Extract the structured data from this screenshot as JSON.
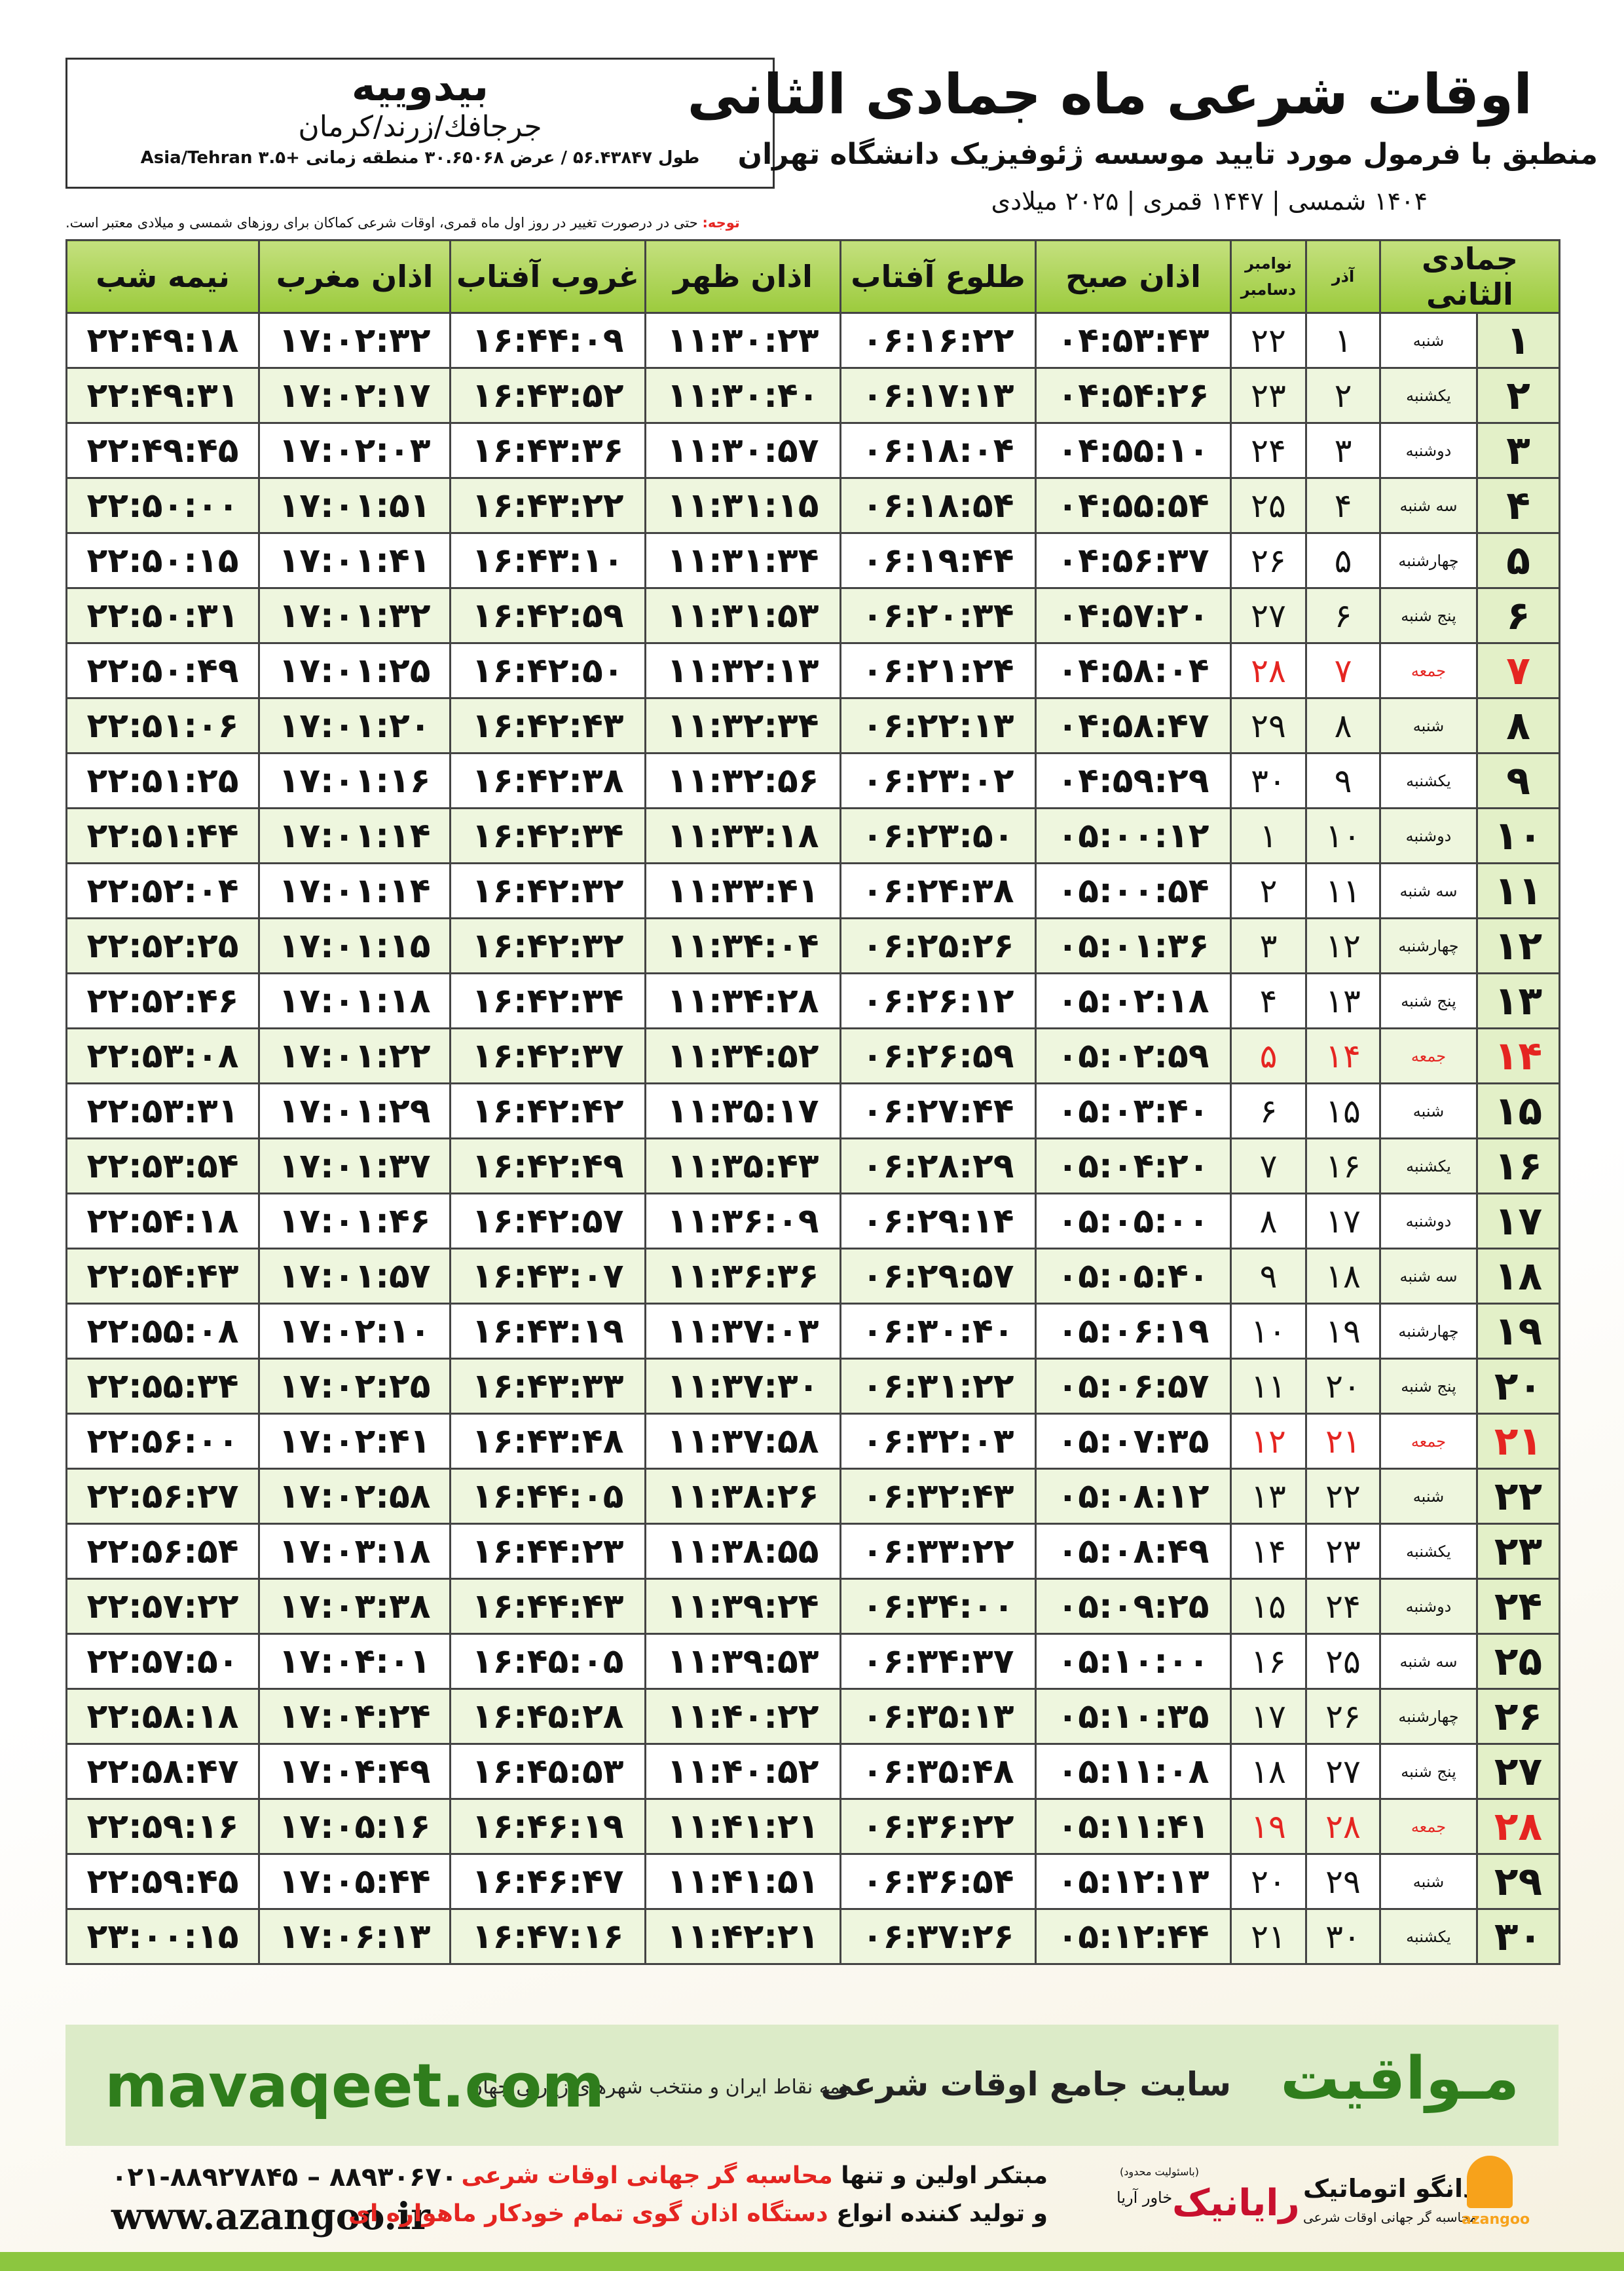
{
  "header": {
    "title": "اوقات شرعی ماه جمادی الثانی",
    "subtitle": "منطبق با فرمول مورد تایید موسسه ژئوفیزیک دانشگاه تهران",
    "years": "۱۴۰۴ شمسی | ۱۴۴۷ قمری | ۲۰۲۵ میلادی"
  },
  "location": {
    "city": "بیدوییه",
    "region": "جرجافك/زرند/کرمان",
    "coords": "طول ۵۶.۴۳۸۴۷ / عرض ۳۰.۶۵۰۶۸ منطقه زمانی +۳.۵ Asia/Tehran"
  },
  "note": {
    "label": "توجه:",
    "text": "حتی در درصورت تغییر در روز اول ماه قمری، اوقات شرعی کماکان برای روزهای شمسی و میلادی معتبر است."
  },
  "table": {
    "headers": {
      "hijri": "جمادی الثانی",
      "azar": "آذر",
      "november": "نوامبر",
      "december": "دسامبر",
      "fajr": "اذان صبح",
      "sunrise": "طلوع آفتاب",
      "dhuhr": "اذان ظهر",
      "sunset": "غروب آفتاب",
      "maghrib": "اذان مغرب",
      "midnight": "نیمه شب"
    },
    "holiday_color": "#e52521",
    "rows": [
      {
        "cells": [
          "۱",
          "شنبه",
          "۱",
          "۲۲",
          "۰۴:۵۳:۴۳",
          "۰۶:۱۶:۲۲",
          "۱۱:۳۰:۲۳",
          "۱۶:۴۴:۰۹",
          "۱۷:۰۲:۳۲",
          "۲۲:۴۹:۱۸"
        ]
      },
      {
        "cells": [
          "۲",
          "یکشنبه",
          "۲",
          "۲۳",
          "۰۴:۵۴:۲۶",
          "۰۶:۱۷:۱۳",
          "۱۱:۳۰:۴۰",
          "۱۶:۴۳:۵۲",
          "۱۷:۰۲:۱۷",
          "۲۲:۴۹:۳۱"
        ]
      },
      {
        "cells": [
          "۳",
          "دوشنبه",
          "۳",
          "۲۴",
          "۰۴:۵۵:۱۰",
          "۰۶:۱۸:۰۴",
          "۱۱:۳۰:۵۷",
          "۱۶:۴۳:۳۶",
          "۱۷:۰۲:۰۳",
          "۲۲:۴۹:۴۵"
        ]
      },
      {
        "cells": [
          "۴",
          "سه شنبه",
          "۴",
          "۲۵",
          "۰۴:۵۵:۵۴",
          "۰۶:۱۸:۵۴",
          "۱۱:۳۱:۱۵",
          "۱۶:۴۳:۲۲",
          "۱۷:۰۱:۵۱",
          "۲۲:۵۰:۰۰"
        ]
      },
      {
        "cells": [
          "۵",
          "چهارشنبه",
          "۵",
          "۲۶",
          "۰۴:۵۶:۳۷",
          "۰۶:۱۹:۴۴",
          "۱۱:۳۱:۳۴",
          "۱۶:۴۳:۱۰",
          "۱۷:۰۱:۴۱",
          "۲۲:۵۰:۱۵"
        ]
      },
      {
        "cells": [
          "۶",
          "پنج شنبه",
          "۶",
          "۲۷",
          "۰۴:۵۷:۲۰",
          "۰۶:۲۰:۳۴",
          "۱۱:۳۱:۵۳",
          "۱۶:۴۲:۵۹",
          "۱۷:۰۱:۳۲",
          "۲۲:۵۰:۳۱"
        ]
      },
      {
        "cells": [
          "۷",
          "جمعه",
          "۷",
          "۲۸",
          "۰۴:۵۸:۰۴",
          "۰۶:۲۱:۲۴",
          "۱۱:۳۲:۱۳",
          "۱۶:۴۲:۵۰",
          "۱۷:۰۱:۲۵",
          "۲۲:۵۰:۴۹"
        ],
        "holiday": true
      },
      {
        "cells": [
          "۸",
          "شنبه",
          "۸",
          "۲۹",
          "۰۴:۵۸:۴۷",
          "۰۶:۲۲:۱۳",
          "۱۱:۳۲:۳۴",
          "۱۶:۴۲:۴۳",
          "۱۷:۰۱:۲۰",
          "۲۲:۵۱:۰۶"
        ]
      },
      {
        "cells": [
          "۹",
          "یکشنبه",
          "۹",
          "۳۰",
          "۰۴:۵۹:۲۹",
          "۰۶:۲۳:۰۲",
          "۱۱:۳۲:۵۶",
          "۱۶:۴۲:۳۸",
          "۱۷:۰۱:۱۶",
          "۲۲:۵۱:۲۵"
        ]
      },
      {
        "cells": [
          "۱۰",
          "دوشنبه",
          "۱۰",
          "۱",
          "۰۵:۰۰:۱۲",
          "۰۶:۲۳:۵۰",
          "۱۱:۳۳:۱۸",
          "۱۶:۴۲:۳۴",
          "۱۷:۰۱:۱۴",
          "۲۲:۵۱:۴۴"
        ]
      },
      {
        "cells": [
          "۱۱",
          "سه شنبه",
          "۱۱",
          "۲",
          "۰۵:۰۰:۵۴",
          "۰۶:۲۴:۳۸",
          "۱۱:۳۳:۴۱",
          "۱۶:۴۲:۳۲",
          "۱۷:۰۱:۱۴",
          "۲۲:۵۲:۰۴"
        ]
      },
      {
        "cells": [
          "۱۲",
          "چهارشنبه",
          "۱۲",
          "۳",
          "۰۵:۰۱:۳۶",
          "۰۶:۲۵:۲۶",
          "۱۱:۳۴:۰۴",
          "۱۶:۴۲:۳۲",
          "۱۷:۰۱:۱۵",
          "۲۲:۵۲:۲۵"
        ]
      },
      {
        "cells": [
          "۱۳",
          "پنج شنبه",
          "۱۳",
          "۴",
          "۰۵:۰۲:۱۸",
          "۰۶:۲۶:۱۲",
          "۱۱:۳۴:۲۸",
          "۱۶:۴۲:۳۴",
          "۱۷:۰۱:۱۸",
          "۲۲:۵۲:۴۶"
        ]
      },
      {
        "cells": [
          "۱۴",
          "جمعه",
          "۱۴",
          "۵",
          "۰۵:۰۲:۵۹",
          "۰۶:۲۶:۵۹",
          "۱۱:۳۴:۵۲",
          "۱۶:۴۲:۳۷",
          "۱۷:۰۱:۲۲",
          "۲۲:۵۳:۰۸"
        ],
        "holiday": true
      },
      {
        "cells": [
          "۱۵",
          "شنبه",
          "۱۵",
          "۶",
          "۰۵:۰۳:۴۰",
          "۰۶:۲۷:۴۴",
          "۱۱:۳۵:۱۷",
          "۱۶:۴۲:۴۲",
          "۱۷:۰۱:۲۹",
          "۲۲:۵۳:۳۱"
        ]
      },
      {
        "cells": [
          "۱۶",
          "یکشنبه",
          "۱۶",
          "۷",
          "۰۵:۰۴:۲۰",
          "۰۶:۲۸:۲۹",
          "۱۱:۳۵:۴۳",
          "۱۶:۴۲:۴۹",
          "۱۷:۰۱:۳۷",
          "۲۲:۵۳:۵۴"
        ]
      },
      {
        "cells": [
          "۱۷",
          "دوشنبه",
          "۱۷",
          "۸",
          "۰۵:۰۵:۰۰",
          "۰۶:۲۹:۱۴",
          "۱۱:۳۶:۰۹",
          "۱۶:۴۲:۵۷",
          "۱۷:۰۱:۴۶",
          "۲۲:۵۴:۱۸"
        ]
      },
      {
        "cells": [
          "۱۸",
          "سه شنبه",
          "۱۸",
          "۹",
          "۰۵:۰۵:۴۰",
          "۰۶:۲۹:۵۷",
          "۱۱:۳۶:۳۶",
          "۱۶:۴۳:۰۷",
          "۱۷:۰۱:۵۷",
          "۲۲:۵۴:۴۳"
        ]
      },
      {
        "cells": [
          "۱۹",
          "چهارشنبه",
          "۱۹",
          "۱۰",
          "۰۵:۰۶:۱۹",
          "۰۶:۳۰:۴۰",
          "۱۱:۳۷:۰۳",
          "۱۶:۴۳:۱۹",
          "۱۷:۰۲:۱۰",
          "۲۲:۵۵:۰۸"
        ]
      },
      {
        "cells": [
          "۲۰",
          "پنج شنبه",
          "۲۰",
          "۱۱",
          "۰۵:۰۶:۵۷",
          "۰۶:۳۱:۲۲",
          "۱۱:۳۷:۳۰",
          "۱۶:۴۳:۳۳",
          "۱۷:۰۲:۲۵",
          "۲۲:۵۵:۳۴"
        ]
      },
      {
        "cells": [
          "۲۱",
          "جمعه",
          "۲۱",
          "۱۲",
          "۰۵:۰۷:۳۵",
          "۰۶:۳۲:۰۳",
          "۱۱:۳۷:۵۸",
          "۱۶:۴۳:۴۸",
          "۱۷:۰۲:۴۱",
          "۲۲:۵۶:۰۰"
        ],
        "holiday": true
      },
      {
        "cells": [
          "۲۲",
          "شنبه",
          "۲۲",
          "۱۳",
          "۰۵:۰۸:۱۲",
          "۰۶:۳۲:۴۳",
          "۱۱:۳۸:۲۶",
          "۱۶:۴۴:۰۵",
          "۱۷:۰۲:۵۸",
          "۲۲:۵۶:۲۷"
        ]
      },
      {
        "cells": [
          "۲۳",
          "یکشنبه",
          "۲۳",
          "۱۴",
          "۰۵:۰۸:۴۹",
          "۰۶:۳۳:۲۲",
          "۱۱:۳۸:۵۵",
          "۱۶:۴۴:۲۳",
          "۱۷:۰۳:۱۸",
          "۲۲:۵۶:۵۴"
        ]
      },
      {
        "cells": [
          "۲۴",
          "دوشنبه",
          "۲۴",
          "۱۵",
          "۰۵:۰۹:۲۵",
          "۰۶:۳۴:۰۰",
          "۱۱:۳۹:۲۴",
          "۱۶:۴۴:۴۳",
          "۱۷:۰۳:۳۸",
          "۲۲:۵۷:۲۲"
        ]
      },
      {
        "cells": [
          "۲۵",
          "سه شنبه",
          "۲۵",
          "۱۶",
          "۰۵:۱۰:۰۰",
          "۰۶:۳۴:۳۷",
          "۱۱:۳۹:۵۳",
          "۱۶:۴۵:۰۵",
          "۱۷:۰۴:۰۱",
          "۲۲:۵۷:۵۰"
        ]
      },
      {
        "cells": [
          "۲۶",
          "چهارشنبه",
          "۲۶",
          "۱۷",
          "۰۵:۱۰:۳۵",
          "۰۶:۳۵:۱۳",
          "۱۱:۴۰:۲۲",
          "۱۶:۴۵:۲۸",
          "۱۷:۰۴:۲۴",
          "۲۲:۵۸:۱۸"
        ]
      },
      {
        "cells": [
          "۲۷",
          "پنج شنبه",
          "۲۷",
          "۱۸",
          "۰۵:۱۱:۰۸",
          "۰۶:۳۵:۴۸",
          "۱۱:۴۰:۵۲",
          "۱۶:۴۵:۵۳",
          "۱۷:۰۴:۴۹",
          "۲۲:۵۸:۴۷"
        ]
      },
      {
        "cells": [
          "۲۸",
          "جمعه",
          "۲۸",
          "۱۹",
          "۰۵:۱۱:۴۱",
          "۰۶:۳۶:۲۲",
          "۱۱:۴۱:۲۱",
          "۱۶:۴۶:۱۹",
          "۱۷:۰۵:۱۶",
          "۲۲:۵۹:۱۶"
        ],
        "holiday": true
      },
      {
        "cells": [
          "۲۹",
          "شنبه",
          "۲۹",
          "۲۰",
          "۰۵:۱۲:۱۳",
          "۰۶:۳۶:۵۴",
          "۱۱:۴۱:۵۱",
          "۱۶:۴۶:۴۷",
          "۱۷:۰۵:۴۴",
          "۲۲:۵۹:۴۵"
        ]
      },
      {
        "cells": [
          "۳۰",
          "یکشنبه",
          "۳۰",
          "۲۱",
          "۰۵:۱۲:۴۴",
          "۰۶:۳۷:۲۶",
          "۱۱:۴۲:۲۱",
          "۱۶:۴۷:۱۶",
          "۱۷:۰۶:۱۳",
          "۲۳:۰۰:۱۵"
        ]
      }
    ]
  },
  "banner": {
    "site": "mavaqeet.com",
    "brand": "مـواقیت",
    "tagline": "سایت جامع اوقات شرعی",
    "coverage": "همه نقاط ایران و منتخب شهرهای زیارتی جهان"
  },
  "footer": {
    "phones": "۰۲۱-۸۸۹۲۷۸۴۵ – ۸۸۹۳۰۶۷۰",
    "web": "www.azangoo.ir",
    "line1_a": "مبتکر اولین و تنها",
    "line1_b": "محاسبه گر جهانی اوقات شرعی",
    "line2_a": "و تولید کننده انواع",
    "line2_b": "دستگاه اذان گوی تمام خودکار ماهواره ای",
    "raianik": "رایانیک",
    "khavar": "خاور آریا",
    "llc": "(باسئولیت محدود)",
    "azangoo_fa": "اذانگو اتوماتیک",
    "azangoo_sub": "محاسبه گر جهانی اوقات شرعی",
    "azangoo_en": "azangoo"
  }
}
